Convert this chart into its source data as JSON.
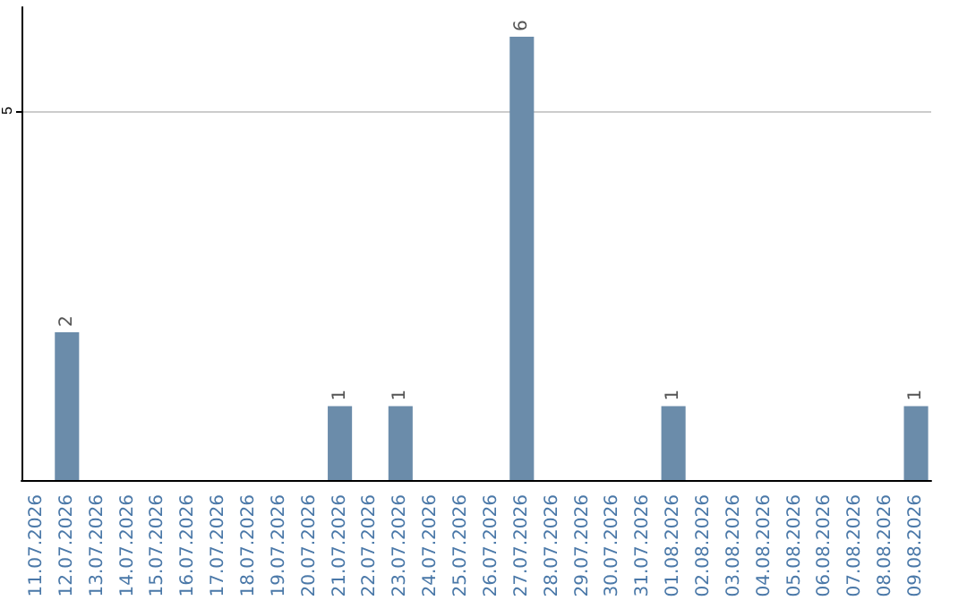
{
  "chart_data": {
    "type": "bar",
    "categories": [
      "11.07.2026",
      "12.07.2026",
      "13.07.2026",
      "14.07.2026",
      "15.07.2026",
      "16.07.2026",
      "17.07.2026",
      "18.07.2026",
      "19.07.2026",
      "20.07.2026",
      "21.07.2026",
      "22.07.2026",
      "23.07.2026",
      "24.07.2026",
      "25.07.2026",
      "26.07.2026",
      "27.07.2026",
      "28.07.2026",
      "29.07.2026",
      "30.07.2026",
      "31.07.2026",
      "01.08.2026",
      "02.08.2026",
      "03.08.2026",
      "04.08.2026",
      "05.08.2026",
      "06.08.2026",
      "07.08.2026",
      "08.08.2026",
      "09.08.2026"
    ],
    "values": [
      0,
      2,
      0,
      0,
      0,
      0,
      0,
      0,
      0,
      0,
      1,
      0,
      1,
      0,
      0,
      0,
      6,
      0,
      0,
      0,
      0,
      1,
      0,
      0,
      0,
      0,
      0,
      0,
      0,
      1
    ],
    "value_labels": [
      null,
      "2",
      null,
      null,
      null,
      null,
      null,
      null,
      null,
      null,
      "1",
      null,
      "1",
      null,
      null,
      null,
      "6",
      null,
      null,
      null,
      null,
      "1",
      null,
      null,
      null,
      null,
      null,
      null,
      null,
      "1"
    ],
    "color": "#6b8caa",
    "ylim": [
      0,
      6.4
    ],
    "yticks": [
      5
    ],
    "grid": "y"
  }
}
